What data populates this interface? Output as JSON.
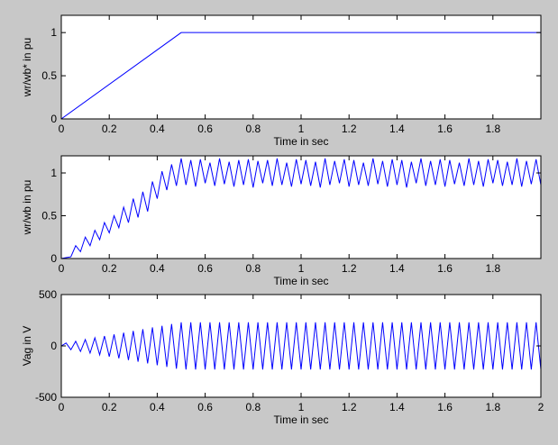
{
  "chart_data": [
    {
      "type": "line",
      "ylabel": "wr/wb* in pu",
      "xlabel": "Time in sec",
      "color": "#0000ff",
      "x": [
        0,
        0.5,
        2
      ],
      "values": [
        0,
        1,
        1
      ],
      "xlim": [
        0,
        2
      ],
      "xticks": [
        0,
        0.2,
        0.4,
        0.6,
        0.8,
        1,
        1.2,
        1.4,
        1.6,
        1.8
      ],
      "ylim": [
        0,
        1.2
      ],
      "yticks": [
        0,
        0.5,
        1
      ]
    },
    {
      "type": "line",
      "ylabel": "wr/wb in pu",
      "xlabel": "Time in sec",
      "color": "#0000ff",
      "x": [
        0,
        0.02,
        0.04,
        0.06,
        0.08,
        0.1,
        0.12,
        0.14,
        0.16,
        0.18,
        0.2,
        0.22,
        0.24,
        0.26,
        0.28,
        0.3,
        0.32,
        0.34,
        0.36,
        0.38,
        0.4,
        0.42,
        0.44,
        0.46,
        0.48,
        0.5,
        0.52,
        0.54,
        0.56,
        0.58,
        0.6,
        0.62,
        0.64,
        0.66,
        0.68,
        0.7,
        0.72,
        0.74,
        0.76,
        0.78,
        0.8,
        0.82,
        0.84,
        0.86,
        0.88,
        0.9,
        0.92,
        0.94,
        0.96,
        0.98,
        1,
        1.02,
        1.04,
        1.06,
        1.08,
        1.1,
        1.12,
        1.14,
        1.16,
        1.18,
        1.2,
        1.22,
        1.24,
        1.26,
        1.28,
        1.3,
        1.32,
        1.34,
        1.36,
        1.38,
        1.4,
        1.42,
        1.44,
        1.46,
        1.48,
        1.5,
        1.52,
        1.54,
        1.56,
        1.58,
        1.6,
        1.62,
        1.64,
        1.66,
        1.68,
        1.7,
        1.72,
        1.74,
        1.76,
        1.78,
        1.8,
        1.82,
        1.84,
        1.86,
        1.88,
        1.9,
        1.92,
        1.94,
        1.96,
        1.98,
        2
      ],
      "values": [
        0,
        0.01,
        0.02,
        0.15,
        0.08,
        0.25,
        0.15,
        0.33,
        0.22,
        0.42,
        0.3,
        0.5,
        0.36,
        0.6,
        0.42,
        0.7,
        0.48,
        0.78,
        0.55,
        0.9,
        0.7,
        1.02,
        0.8,
        1.1,
        0.85,
        1.17,
        0.86,
        1.15,
        0.84,
        1.16,
        0.88,
        1.12,
        0.85,
        1.17,
        0.87,
        1.13,
        0.84,
        1.15,
        0.86,
        1.16,
        0.83,
        1.14,
        0.88,
        1.15,
        0.85,
        1.17,
        0.86,
        1.12,
        0.84,
        1.16,
        0.87,
        1.15,
        0.85,
        1.13,
        0.83,
        1.17,
        0.86,
        1.14,
        0.88,
        1.16,
        0.84,
        1.15,
        0.86,
        1.12,
        0.85,
        1.17,
        0.87,
        1.14,
        0.84,
        1.16,
        0.86,
        1.15,
        0.83,
        1.13,
        0.88,
        1.17,
        0.85,
        1.14,
        0.86,
        1.16,
        0.84,
        1.15,
        0.87,
        1.12,
        0.85,
        1.17,
        0.86,
        1.14,
        0.84,
        1.16,
        0.88,
        1.15,
        0.85,
        1.13,
        0.86,
        1.17,
        0.84,
        1.14,
        0.87,
        1.16,
        0.86
      ],
      "xlim": [
        0,
        2
      ],
      "xticks": [
        0,
        0.2,
        0.4,
        0.6,
        0.8,
        1,
        1.2,
        1.4,
        1.6,
        1.8
      ],
      "ylim": [
        0,
        1.2
      ],
      "yticks": [
        0,
        0.5,
        1
      ]
    },
    {
      "type": "line",
      "ylabel": "Vag in V",
      "xlabel": "Time in sec",
      "color": "#0000ff",
      "x": [
        0,
        0.02,
        0.04,
        0.06,
        0.08,
        0.1,
        0.12,
        0.14,
        0.16,
        0.18,
        0.2,
        0.22,
        0.24,
        0.26,
        0.28,
        0.3,
        0.32,
        0.34,
        0.36,
        0.38,
        0.4,
        0.42,
        0.44,
        0.46,
        0.48,
        0.5,
        0.52,
        0.54,
        0.56,
        0.58,
        0.6,
        0.62,
        0.64,
        0.66,
        0.68,
        0.7,
        0.72,
        0.74,
        0.76,
        0.78,
        0.8,
        0.82,
        0.84,
        0.86,
        0.88,
        0.9,
        0.92,
        0.94,
        0.96,
        0.98,
        1,
        1.02,
        1.04,
        1.06,
        1.08,
        1.1,
        1.12,
        1.14,
        1.16,
        1.18,
        1.2,
        1.22,
        1.24,
        1.26,
        1.28,
        1.3,
        1.32,
        1.34,
        1.36,
        1.38,
        1.4,
        1.42,
        1.44,
        1.46,
        1.48,
        1.5,
        1.52,
        1.54,
        1.56,
        1.58,
        1.6,
        1.62,
        1.64,
        1.66,
        1.68,
        1.7,
        1.72,
        1.74,
        1.76,
        1.78,
        1.8,
        1.82,
        1.84,
        1.86,
        1.88,
        1.9,
        1.92,
        1.94,
        1.96,
        1.98,
        2
      ],
      "values": [
        0,
        28,
        -37,
        45,
        -54,
        62,
        -70,
        79,
        -87,
        96,
        -104,
        112,
        -121,
        129,
        -138,
        146,
        -154,
        163,
        -171,
        180,
        -188,
        196,
        -205,
        213,
        -222,
        230,
        -230,
        230,
        -230,
        230,
        -230,
        230,
        -230,
        230,
        -230,
        230,
        -230,
        230,
        -230,
        230,
        -230,
        230,
        -230,
        230,
        -230,
        230,
        -230,
        230,
        -230,
        230,
        -230,
        230,
        -230,
        230,
        -230,
        230,
        -230,
        230,
        -230,
        230,
        -230,
        230,
        -230,
        230,
        -230,
        230,
        -230,
        230,
        -230,
        230,
        -230,
        230,
        -230,
        230,
        -230,
        230,
        -230,
        230,
        -230,
        230,
        -230,
        230,
        -230,
        230,
        -230,
        230,
        -230,
        230,
        -230,
        230,
        -230,
        230,
        -230,
        230,
        -230,
        230,
        -230,
        230,
        -230,
        230,
        -230
      ],
      "xlim": [
        0,
        2
      ],
      "xticks": [
        0,
        0.2,
        0.4,
        0.6,
        0.8,
        1,
        1.2,
        1.4,
        1.6,
        1.8,
        2
      ],
      "ylim": [
        -500,
        500
      ],
      "yticks": [
        -500,
        0,
        500
      ]
    }
  ]
}
